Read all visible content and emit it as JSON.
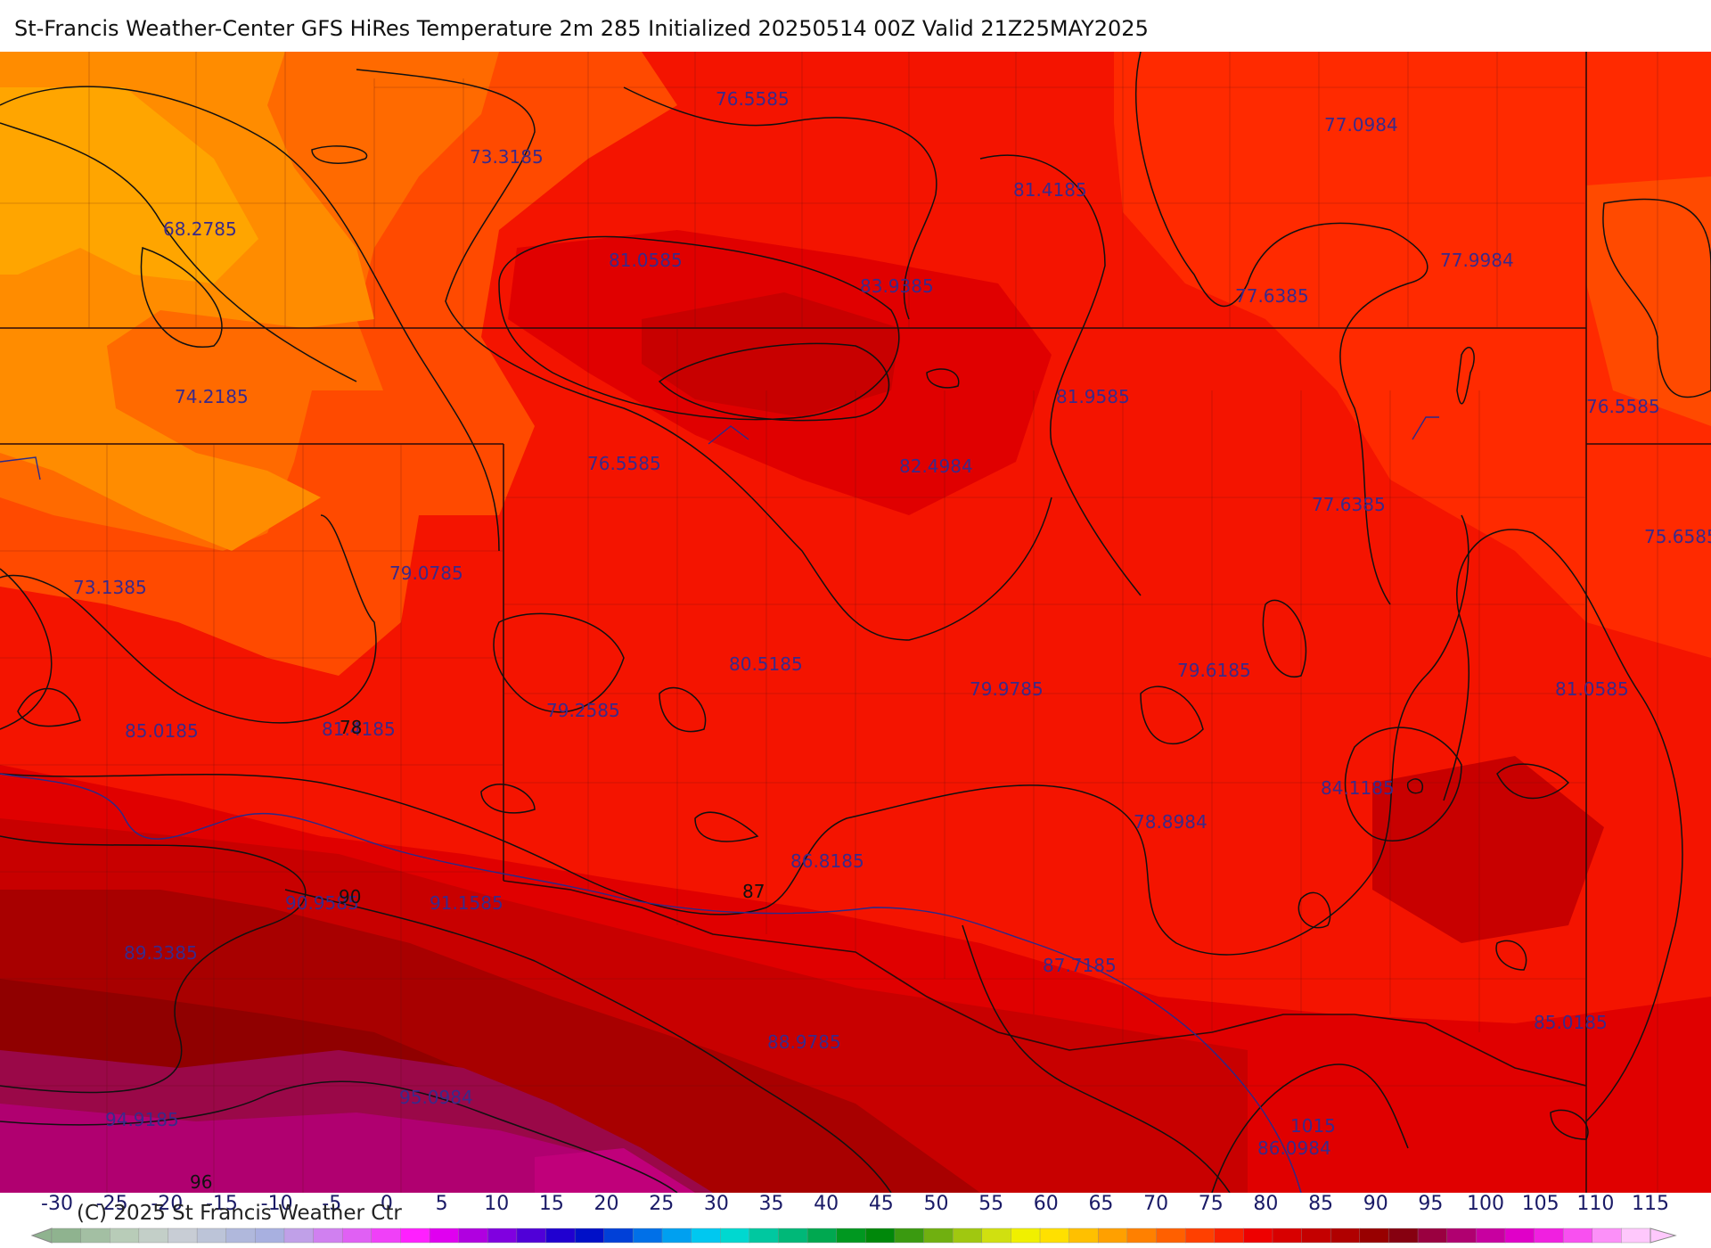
{
  "title": "St-Francis Weather-Center GFS HiRes Temperature 2m  285 Initialized 20250514 00Z Valid 21Z25MAY2025",
  "copyright": "(C) 2025 St Francis Weather Ctr",
  "map": {
    "value_labels": [
      {
        "text": "76.5585"
      },
      {
        "text": "73.3185"
      },
      {
        "text": "68.2785"
      },
      {
        "text": "77.0984"
      },
      {
        "text": "81.4185"
      },
      {
        "text": "81.0585"
      },
      {
        "text": "83.9385"
      },
      {
        "text": "77.6385"
      },
      {
        "text": "77.9984"
      },
      {
        "text": "74.2185"
      },
      {
        "text": "81.9585"
      },
      {
        "text": "76.5585"
      },
      {
        "text": "76.5585"
      },
      {
        "text": "82.4984"
      },
      {
        "text": "77.6385"
      },
      {
        "text": "75.6585"
      },
      {
        "text": "73.1385"
      },
      {
        "text": "79.0785"
      },
      {
        "text": "80.5185"
      },
      {
        "text": "79.6185"
      },
      {
        "text": "79.9785"
      },
      {
        "text": "81.0585"
      },
      {
        "text": "79.2585"
      },
      {
        "text": "85.0185"
      },
      {
        "text": "81.4185"
      },
      {
        "text": "84.1185"
      },
      {
        "text": "78.8984"
      },
      {
        "text": "86.8185"
      },
      {
        "text": "90.9585"
      },
      {
        "text": "91.1585"
      },
      {
        "text": "89.3385"
      },
      {
        "text": "87.7185"
      },
      {
        "text": "85.0185"
      },
      {
        "text": "88.9785"
      },
      {
        "text": "95.0984"
      },
      {
        "text": "94.9185"
      },
      {
        "text": "86.0984"
      }
    ],
    "isoline_labels": [
      {
        "text": "78"
      },
      {
        "text": "90"
      },
      {
        "text": "87"
      },
      {
        "text": "96"
      },
      {
        "text": "1015"
      }
    ]
  },
  "scale": {
    "ticks": [
      "-30",
      "-25",
      "-20",
      "-15",
      "-10",
      "-5",
      "0",
      "5",
      "10",
      "15",
      "20",
      "25",
      "30",
      "35",
      "40",
      "45",
      "50",
      "55",
      "60",
      "65",
      "70",
      "75",
      "80",
      "85",
      "90",
      "95",
      "100",
      "105",
      "110",
      "115"
    ],
    "colors": [
      "#8fb38f",
      "#a3bfa3",
      "#b8ccb8",
      "#c3cfc8",
      "#c8cdd5",
      "#bcc4d8",
      "#b0b8dc",
      "#a8b0e0",
      "#c0a0e8",
      "#d080f0",
      "#e060f4",
      "#f040f8",
      "#ff20ff",
      "#e000f0",
      "#b000e0",
      "#8000e0",
      "#5000d8",
      "#2000d0",
      "#0010c8",
      "#0040d8",
      "#0070e8",
      "#00a0f0",
      "#00c8f0",
      "#00d8d0",
      "#00c8a0",
      "#00b878",
      "#00a850",
      "#009820",
      "#00880a",
      "#3a9a10",
      "#70b010",
      "#a0c810",
      "#d0e010",
      "#f0f000",
      "#ffe000",
      "#ffc000",
      "#ffa000",
      "#ff8000",
      "#ff6000",
      "#ff4000",
      "#f82000",
      "#ee0000",
      "#d80000",
      "#c40000",
      "#b00000",
      "#980000",
      "#860010",
      "#9a0040",
      "#b00070",
      "#c800a0",
      "#e000c8",
      "#f020e0",
      "#f850f0",
      "#fc90f8",
      "#fec8fc"
    ]
  },
  "legend_colors": {
    "c68": "#ffa500",
    "c70": "#ff8c00",
    "c73": "#ff6a00",
    "c76": "#ff4a00",
    "c79": "#ff2a00",
    "c80": "#f41400",
    "c83": "#e00000",
    "c86": "#c80000",
    "c89": "#a80000",
    "c92": "#900000",
    "c95": "#9a0848",
    "c98": "#c0007a"
  }
}
